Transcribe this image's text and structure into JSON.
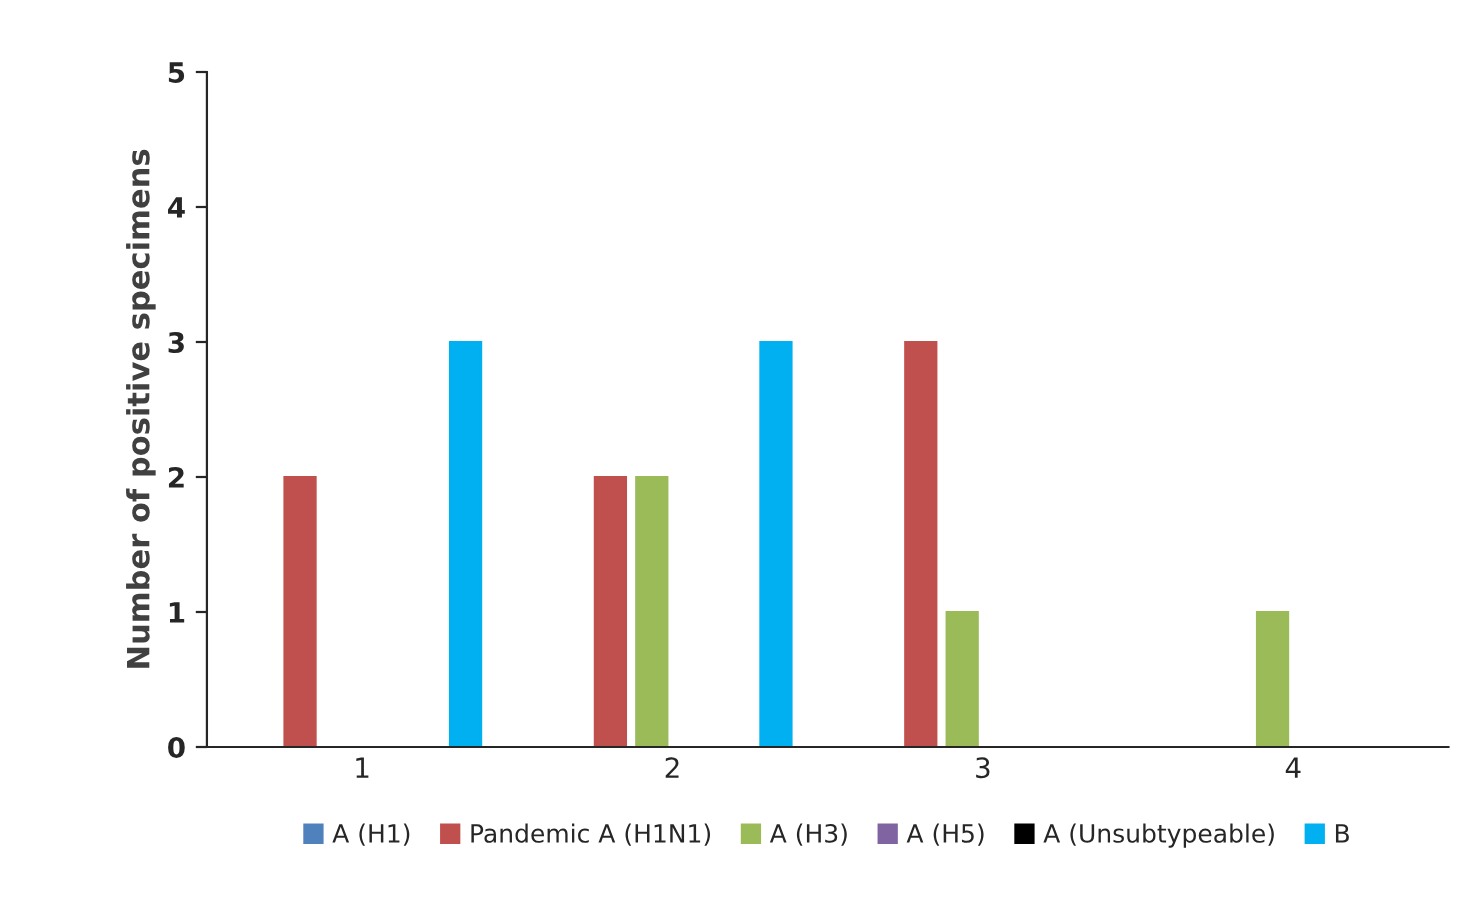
{
  "chart_data": {
    "type": "bar",
    "ylabel": "Number of positive specimens",
    "categories": [
      "1",
      "2",
      "3",
      "4"
    ],
    "series": [
      {
        "name": "A (H1)",
        "color": "#4f81bd",
        "values": [
          0,
          0,
          0,
          0
        ]
      },
      {
        "name": "Pandemic A (H1N1)",
        "color": "#c0504d",
        "values": [
          2,
          2,
          3,
          0
        ]
      },
      {
        "name": "A (H3)",
        "color": "#9bbb59",
        "values": [
          0,
          2,
          1,
          1
        ]
      },
      {
        "name": "A (H5)",
        "color": "#8064a2",
        "values": [
          0,
          0,
          0,
          0
        ]
      },
      {
        "name": "A (Unsubtypeable)",
        "color": "#000000",
        "values": [
          0,
          0,
          0,
          0
        ]
      },
      {
        "name": "B",
        "color": "#00b0f0",
        "values": [
          3,
          3,
          0,
          0
        ]
      }
    ],
    "ylim": [
      0,
      5
    ],
    "yticks": [
      0,
      1,
      2,
      3,
      4,
      5
    ],
    "grid": false,
    "legend": "bottom"
  }
}
